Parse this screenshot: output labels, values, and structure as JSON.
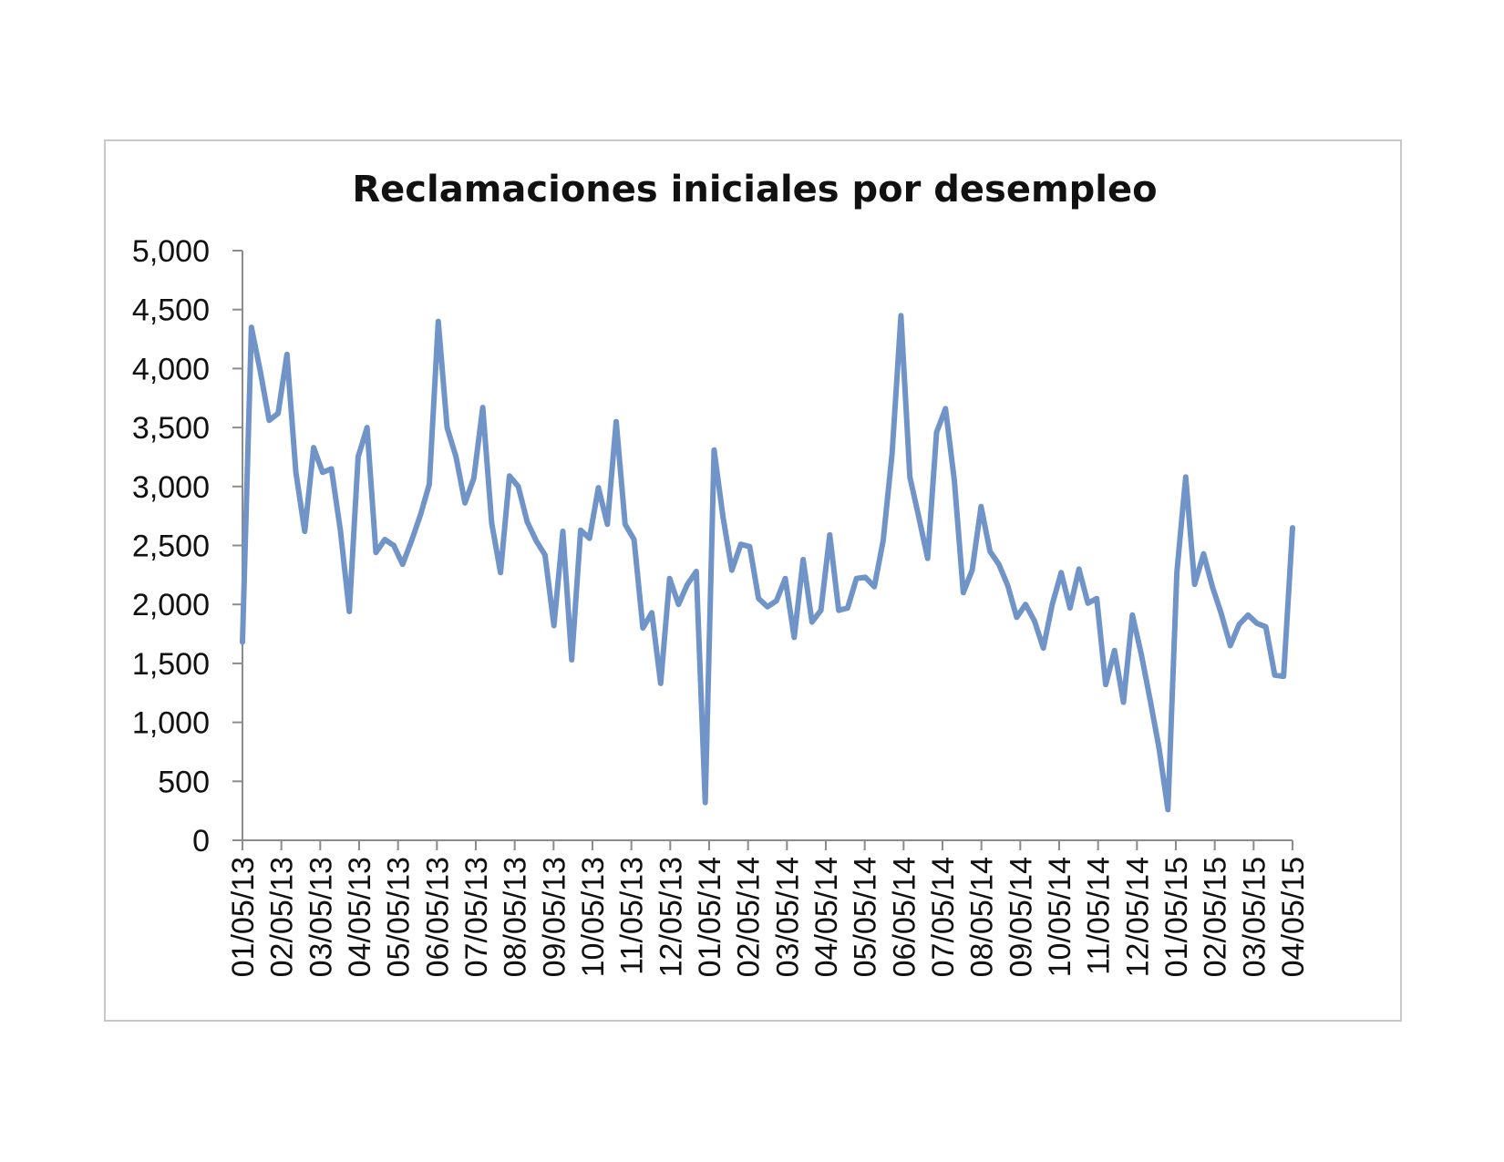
{
  "chart_data": {
    "type": "line",
    "title": "Reclamaciones iniciales por desempleo",
    "xlabel": "",
    "ylabel": "",
    "ylim": [
      0,
      5000
    ],
    "y_ticks": [
      "0",
      "500",
      "1,000",
      "1,500",
      "2,000",
      "2,500",
      "3,000",
      "3,500",
      "4,000",
      "4,500",
      "5,000"
    ],
    "y_tick_values": [
      0,
      500,
      1000,
      1500,
      2000,
      2500,
      3000,
      3500,
      4000,
      4500,
      5000
    ],
    "x_tick_labels": [
      "01/05/13",
      "02/05/13",
      "03/05/13",
      "04/05/13",
      "05/05/13",
      "06/05/13",
      "07/05/13",
      "08/05/13",
      "09/05/13",
      "10/05/13",
      "11/05/13",
      "12/05/13",
      "01/05/14",
      "02/05/14",
      "03/05/14",
      "04/05/14",
      "05/05/14",
      "06/05/14",
      "07/05/14",
      "08/05/14",
      "09/05/14",
      "10/05/14",
      "11/05/14",
      "12/05/14",
      "01/05/15",
      "02/05/15",
      "03/05/15",
      "04/05/15"
    ],
    "grid": false,
    "legend": "none",
    "line_color": "#7094c8",
    "series": [
      {
        "values": [
          1680,
          4350,
          3980,
          3560,
          3620,
          4120,
          3120,
          2620,
          3330,
          3120,
          3150,
          2630,
          1940,
          3250,
          3500,
          2440,
          2550,
          2500,
          2340,
          2540,
          2760,
          3020,
          4400,
          3500,
          3250,
          2860,
          3070,
          3670,
          2690,
          2270,
          3090,
          3000,
          2700,
          2540,
          2420,
          1820,
          2620,
          1530,
          2630,
          2560,
          2990,
          2680,
          3550,
          2680,
          2550,
          1800,
          1930,
          1330,
          2220,
          2000,
          2170,
          2280,
          320,
          3310,
          2740,
          2290,
          2510,
          2490,
          2050,
          1980,
          2030,
          2220,
          1720,
          2380,
          1850,
          1950,
          2590,
          1950,
          1970,
          2220,
          2230,
          2150,
          2540,
          3280,
          4450,
          3080,
          2740,
          2390,
          3460,
          3660,
          3050,
          2100,
          2290,
          2830,
          2450,
          2340,
          2160,
          1890,
          2000,
          1860,
          1630,
          2000,
          2270,
          1970,
          2300,
          2010,
          2050,
          1320,
          1610,
          1170,
          1910,
          1580,
          1190,
          780,
          260,
          2270,
          3080,
          2170,
          2430,
          2150,
          1920,
          1650,
          1830,
          1910,
          1840,
          1810,
          1400,
          1390,
          2650
        ]
      }
    ]
  }
}
